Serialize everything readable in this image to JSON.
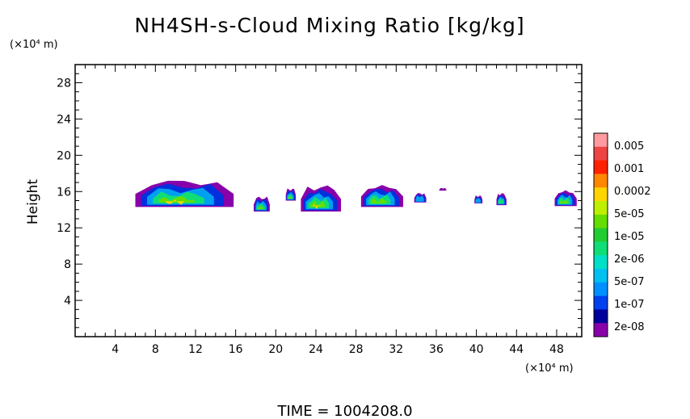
{
  "chart_data": {
    "type": "heatmap",
    "title": "NH4SH-s-Cloud Mixing Ratio [kg/kg]",
    "ylabel": "Height",
    "y_unit": "(×10⁴ m)",
    "x_unit": "(×10⁴ m)",
    "footer": "TIME = 1004208.0",
    "xlim": [
      0,
      50.5
    ],
    "ylim": [
      0,
      30
    ],
    "x_ticks": [
      4,
      8,
      12,
      16,
      20,
      24,
      28,
      32,
      36,
      40,
      44,
      48
    ],
    "y_ticks": [
      4,
      8,
      12,
      16,
      20,
      24,
      28
    ],
    "colorbar": {
      "labels": [
        "0.005",
        "0.001",
        "0.0002",
        "5e-05",
        "1e-05",
        "2e-06",
        "5e-07",
        "1e-07",
        "2e-08"
      ],
      "colors": [
        "#ff9aa0",
        "#ee4444",
        "#ff2200",
        "#ff8800",
        "#ffd500",
        "#bfef00",
        "#66dd00",
        "#22cc33",
        "#11dd77",
        "#00e0c8",
        "#00c0f0",
        "#0090ff",
        "#0040ee",
        "#00009a",
        "#8800aa"
      ]
    },
    "clouds": [
      {
        "x": [
          6.0,
          15.8
        ],
        "y": [
          14.3,
          17.4
        ],
        "max": "5e-05"
      },
      {
        "x": [
          17.8,
          19.4
        ],
        "y": [
          13.8,
          15.5
        ],
        "max": "1e-05"
      },
      {
        "x": [
          21.0,
          22.0
        ],
        "y": [
          15.0,
          16.4
        ],
        "max": "1e-05"
      },
      {
        "x": [
          22.5,
          26.5
        ],
        "y": [
          13.8,
          16.8
        ],
        "max": "5e-05"
      },
      {
        "x": [
          28.5,
          32.7
        ],
        "y": [
          14.3,
          16.8
        ],
        "max": "1e-05"
      },
      {
        "x": [
          33.8,
          35.0
        ],
        "y": [
          14.8,
          15.9
        ],
        "max": "5e-07"
      },
      {
        "x": [
          36.3,
          37.0
        ],
        "y": [
          16.1,
          16.4
        ],
        "max": "2e-08"
      },
      {
        "x": [
          39.8,
          40.6
        ],
        "y": [
          14.7,
          15.6
        ],
        "max": "5e-07"
      },
      {
        "x": [
          42.0,
          43.0
        ],
        "y": [
          14.5,
          15.9
        ],
        "max": "2e-06"
      },
      {
        "x": [
          47.8,
          50.0
        ],
        "y": [
          14.4,
          16.2
        ],
        "max": "1e-05"
      }
    ]
  }
}
